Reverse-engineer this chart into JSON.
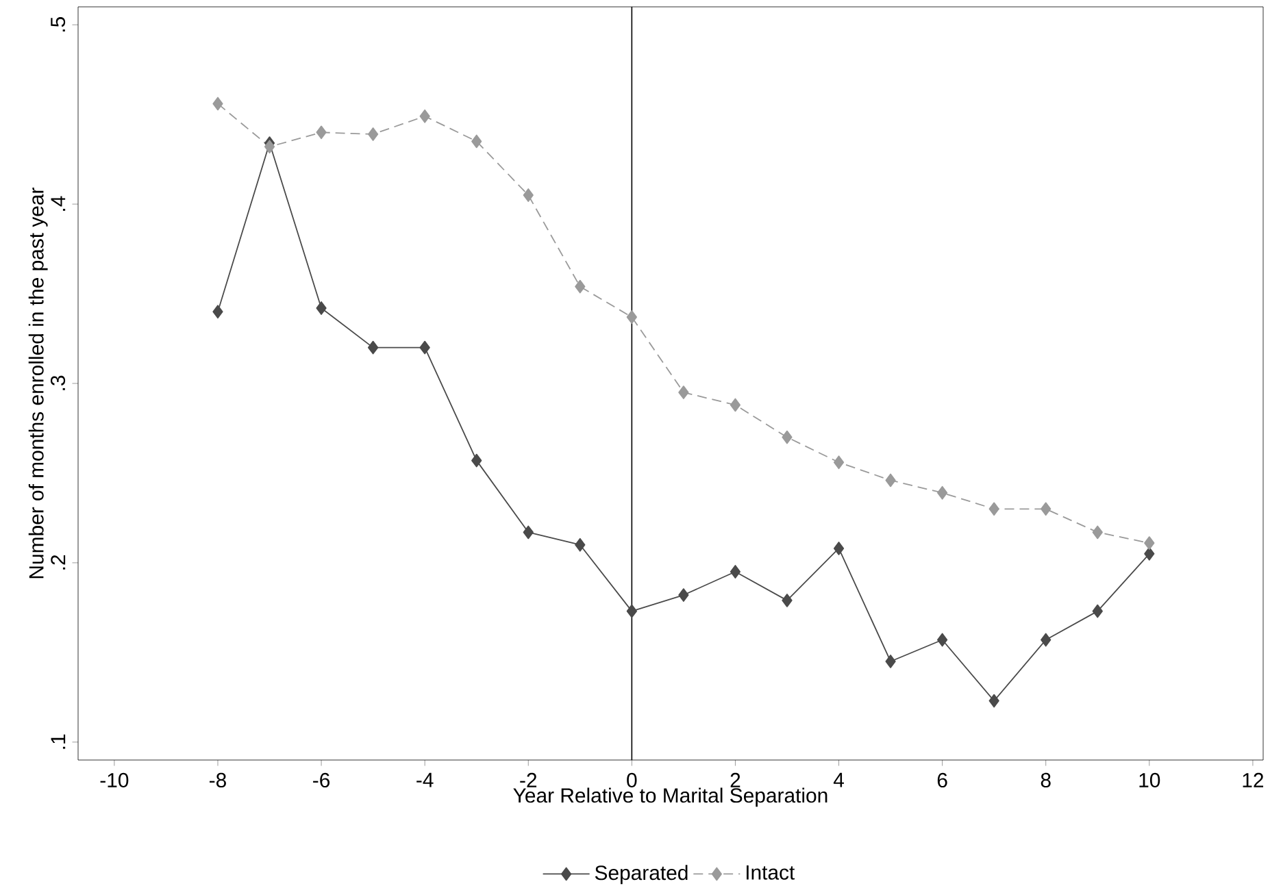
{
  "chart_data": {
    "type": "line",
    "xlabel": "Year Relative to Marital Separation",
    "ylabel": "Number of months enrolled in the past year",
    "x": [
      -8,
      -7,
      -6,
      -5,
      -4,
      -3,
      -2,
      -1,
      0,
      1,
      2,
      3,
      4,
      5,
      6,
      7,
      8,
      9,
      10
    ],
    "series": [
      {
        "name": "Separated",
        "color": "#4a4a4a",
        "line_style": "solid",
        "values": [
          0.34,
          0.434,
          0.342,
          0.32,
          0.32,
          0.257,
          0.217,
          0.21,
          0.173,
          0.182,
          0.195,
          0.179,
          0.208,
          0.145,
          0.157,
          0.123,
          0.157,
          0.173,
          0.205
        ]
      },
      {
        "name": "Intact",
        "color": "#9a9a9a",
        "line_style": "dashed",
        "values": [
          0.456,
          0.432,
          0.44,
          0.439,
          0.449,
          0.435,
          0.405,
          0.354,
          0.337,
          0.295,
          0.288,
          0.27,
          0.256,
          0.246,
          0.239,
          0.23,
          0.23,
          0.217,
          0.211
        ]
      }
    ],
    "xlim": [
      -10.7,
      12.2
    ],
    "ylim": [
      0.09,
      0.51
    ],
    "xticks": [
      -10,
      -8,
      -6,
      -4,
      -2,
      0,
      2,
      4,
      6,
      8,
      10,
      12
    ],
    "yticks": [
      {
        "value": 0.1,
        "label": ".1"
      },
      {
        "value": 0.2,
        "label": ".2"
      },
      {
        "value": 0.3,
        "label": ".3"
      },
      {
        "value": 0.4,
        "label": ".4"
      },
      {
        "value": 0.5,
        "label": ".5"
      }
    ],
    "ref_lines": [
      {
        "axis": "x",
        "value": 0,
        "color": "#000000"
      }
    ],
    "grid": false,
    "legend": "bottom",
    "marker": "diamond"
  }
}
